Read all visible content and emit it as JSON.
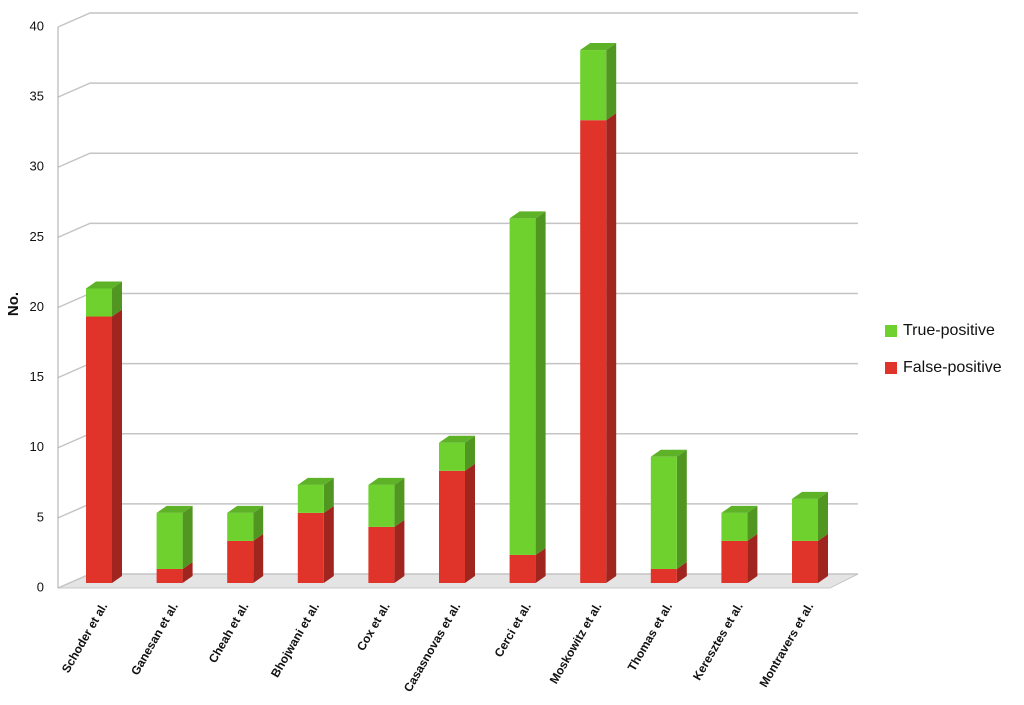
{
  "chart_data": {
    "type": "bar3d",
    "stacked": true,
    "y_label": "No.",
    "categories": [
      "Schoder et al.",
      "Ganesan et al.",
      "Cheah et al.",
      "Bhojwani et al.",
      "Cox et al.",
      "Casasnovas et al.",
      "Cerci et al.",
      "Moskowitz et al.",
      "Thomas et al.",
      "Keresztes et al.",
      "Montravers et al."
    ],
    "series": [
      {
        "name": "True-positive",
        "color": "#6fd12e",
        "values": [
          2,
          4,
          2,
          2,
          3,
          2,
          24,
          5,
          8,
          2,
          3
        ]
      },
      {
        "name": "False-positive",
        "color": "#e0342b",
        "values": [
          19,
          1,
          3,
          5,
          4,
          8,
          2,
          33,
          1,
          3,
          3
        ]
      }
    ],
    "ylim": [
      0,
      40
    ],
    "yticks": [
      0,
      5,
      10,
      15,
      20,
      25,
      30,
      35,
      40
    ],
    "grid": true,
    "legend": "right"
  }
}
